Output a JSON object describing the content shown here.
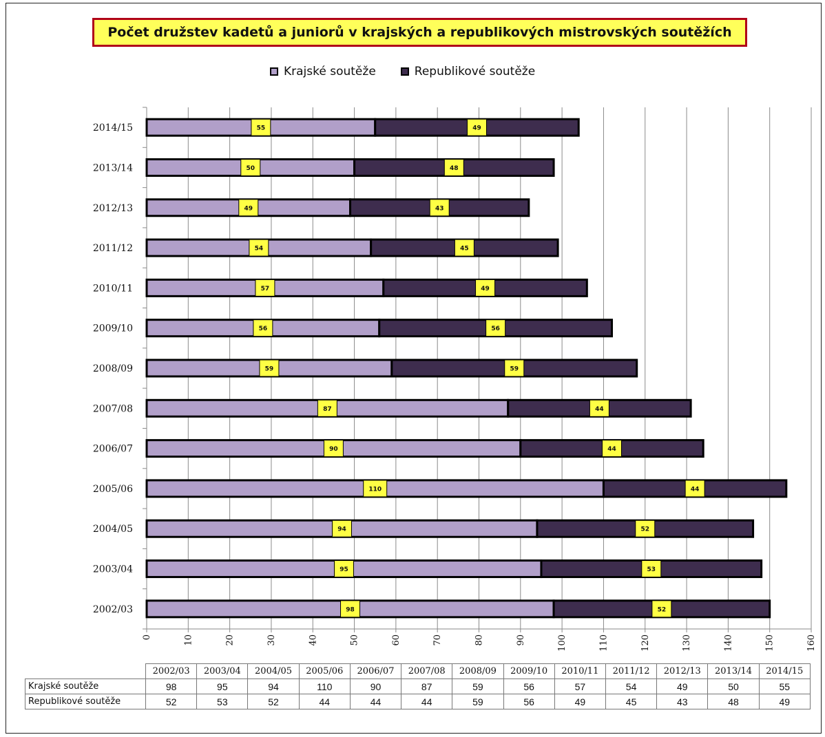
{
  "chart_data": {
    "type": "bar",
    "orientation": "horizontal",
    "stacked": true,
    "title": "Počet družstev kadetů a juniorů v krajských a republikových mistrovských  soutěžích",
    "categories": [
      "2002/03",
      "2003/04",
      "2004/05",
      "2005/06",
      "2006/07",
      "2007/08",
      "2008/09",
      "2009/10",
      "2010/11",
      "2011/12",
      "2012/13",
      "2013/14",
      "2014/15"
    ],
    "series": [
      {
        "name": "Krajské soutěže",
        "color": "#b19fc9",
        "values": [
          98,
          95,
          94,
          110,
          90,
          87,
          59,
          56,
          57,
          54,
          49,
          50,
          55
        ]
      },
      {
        "name": "Republikové soutěže",
        "color": "#3e2d4e",
        "values": [
          52,
          53,
          52,
          44,
          44,
          44,
          59,
          56,
          49,
          45,
          43,
          48,
          49
        ]
      }
    ],
    "xlim": [
      0,
      160
    ],
    "xticks": [
      "0",
      "10",
      "20",
      "30",
      "40",
      "50",
      "60",
      "70",
      "80",
      "90",
      "100",
      "110",
      "120",
      "130",
      "140",
      "150",
      "160"
    ],
    "grid": true,
    "legend": "top",
    "label_box_color": "#ffff44",
    "data_table": true
  }
}
